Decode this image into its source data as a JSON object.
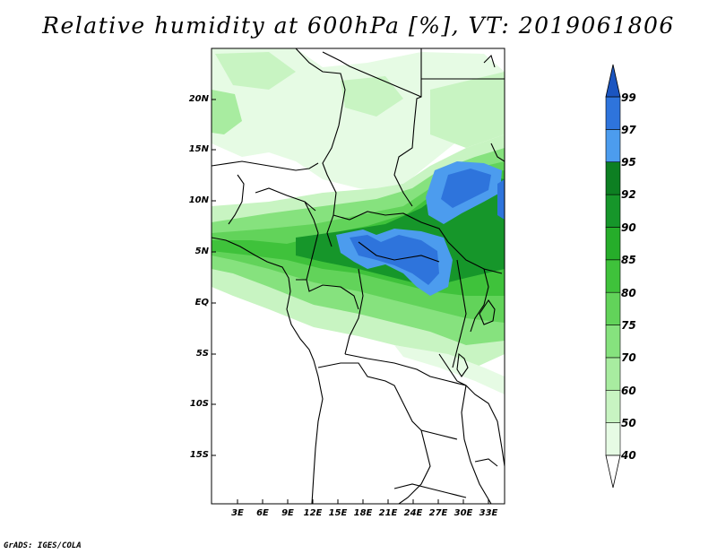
{
  "title": "Relative humidity at 600hPa [%], VT: 2019061806",
  "credit": "GrADS: IGES/COLA",
  "map": {
    "lat_ticks": [
      "20N",
      "15N",
      "10N",
      "5N",
      "EQ",
      "5S",
      "10S",
      "15S"
    ],
    "lon_ticks": [
      "3E",
      "6E",
      "9E",
      "12E",
      "15E",
      "18E",
      "21E",
      "24E",
      "27E",
      "30E",
      "33E"
    ]
  },
  "colorbar": {
    "levels": [
      "40",
      "50",
      "60",
      "70",
      "75",
      "80",
      "85",
      "90",
      "92",
      "95",
      "97",
      "99"
    ],
    "colors": [
      "#e6fbe4",
      "#c8f4c2",
      "#a8eca0",
      "#86e27e",
      "#62d35a",
      "#3fc23b",
      "#26ad2a",
      "#16962a",
      "#0d7f22",
      "#4c9cee",
      "#2e74dc",
      "#1b55c0"
    ],
    "below_color": "#ffffff"
  }
}
